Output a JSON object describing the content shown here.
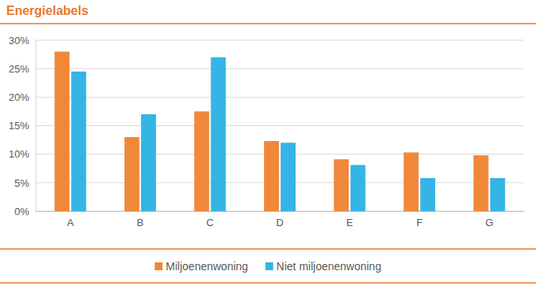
{
  "chart_data": {
    "type": "bar",
    "title": "Energielabels",
    "categories": [
      "A",
      "B",
      "C",
      "D",
      "E",
      "F",
      "G"
    ],
    "series": [
      {
        "name": "Miljoenenwoning",
        "color": "#f0883a",
        "values": [
          28,
          13,
          17.5,
          12.3,
          9.1,
          10.3,
          9.8
        ]
      },
      {
        "name": "Niet miljoenenwoning",
        "color": "#35b4e6",
        "values": [
          24.5,
          17,
          27,
          12,
          8.1,
          5.8,
          5.8
        ]
      }
    ],
    "ylim": [
      0,
      30
    ],
    "yticks": [
      {
        "value": 0,
        "label": "0%"
      },
      {
        "value": 5,
        "label": "5%"
      },
      {
        "value": 10,
        "label": "10%"
      },
      {
        "value": 15,
        "label": "15%"
      },
      {
        "value": 20,
        "label": "20%"
      },
      {
        "value": 25,
        "label": "25%"
      },
      {
        "value": 30,
        "label": "30%"
      }
    ],
    "grid": true,
    "legend": "bottom"
  }
}
